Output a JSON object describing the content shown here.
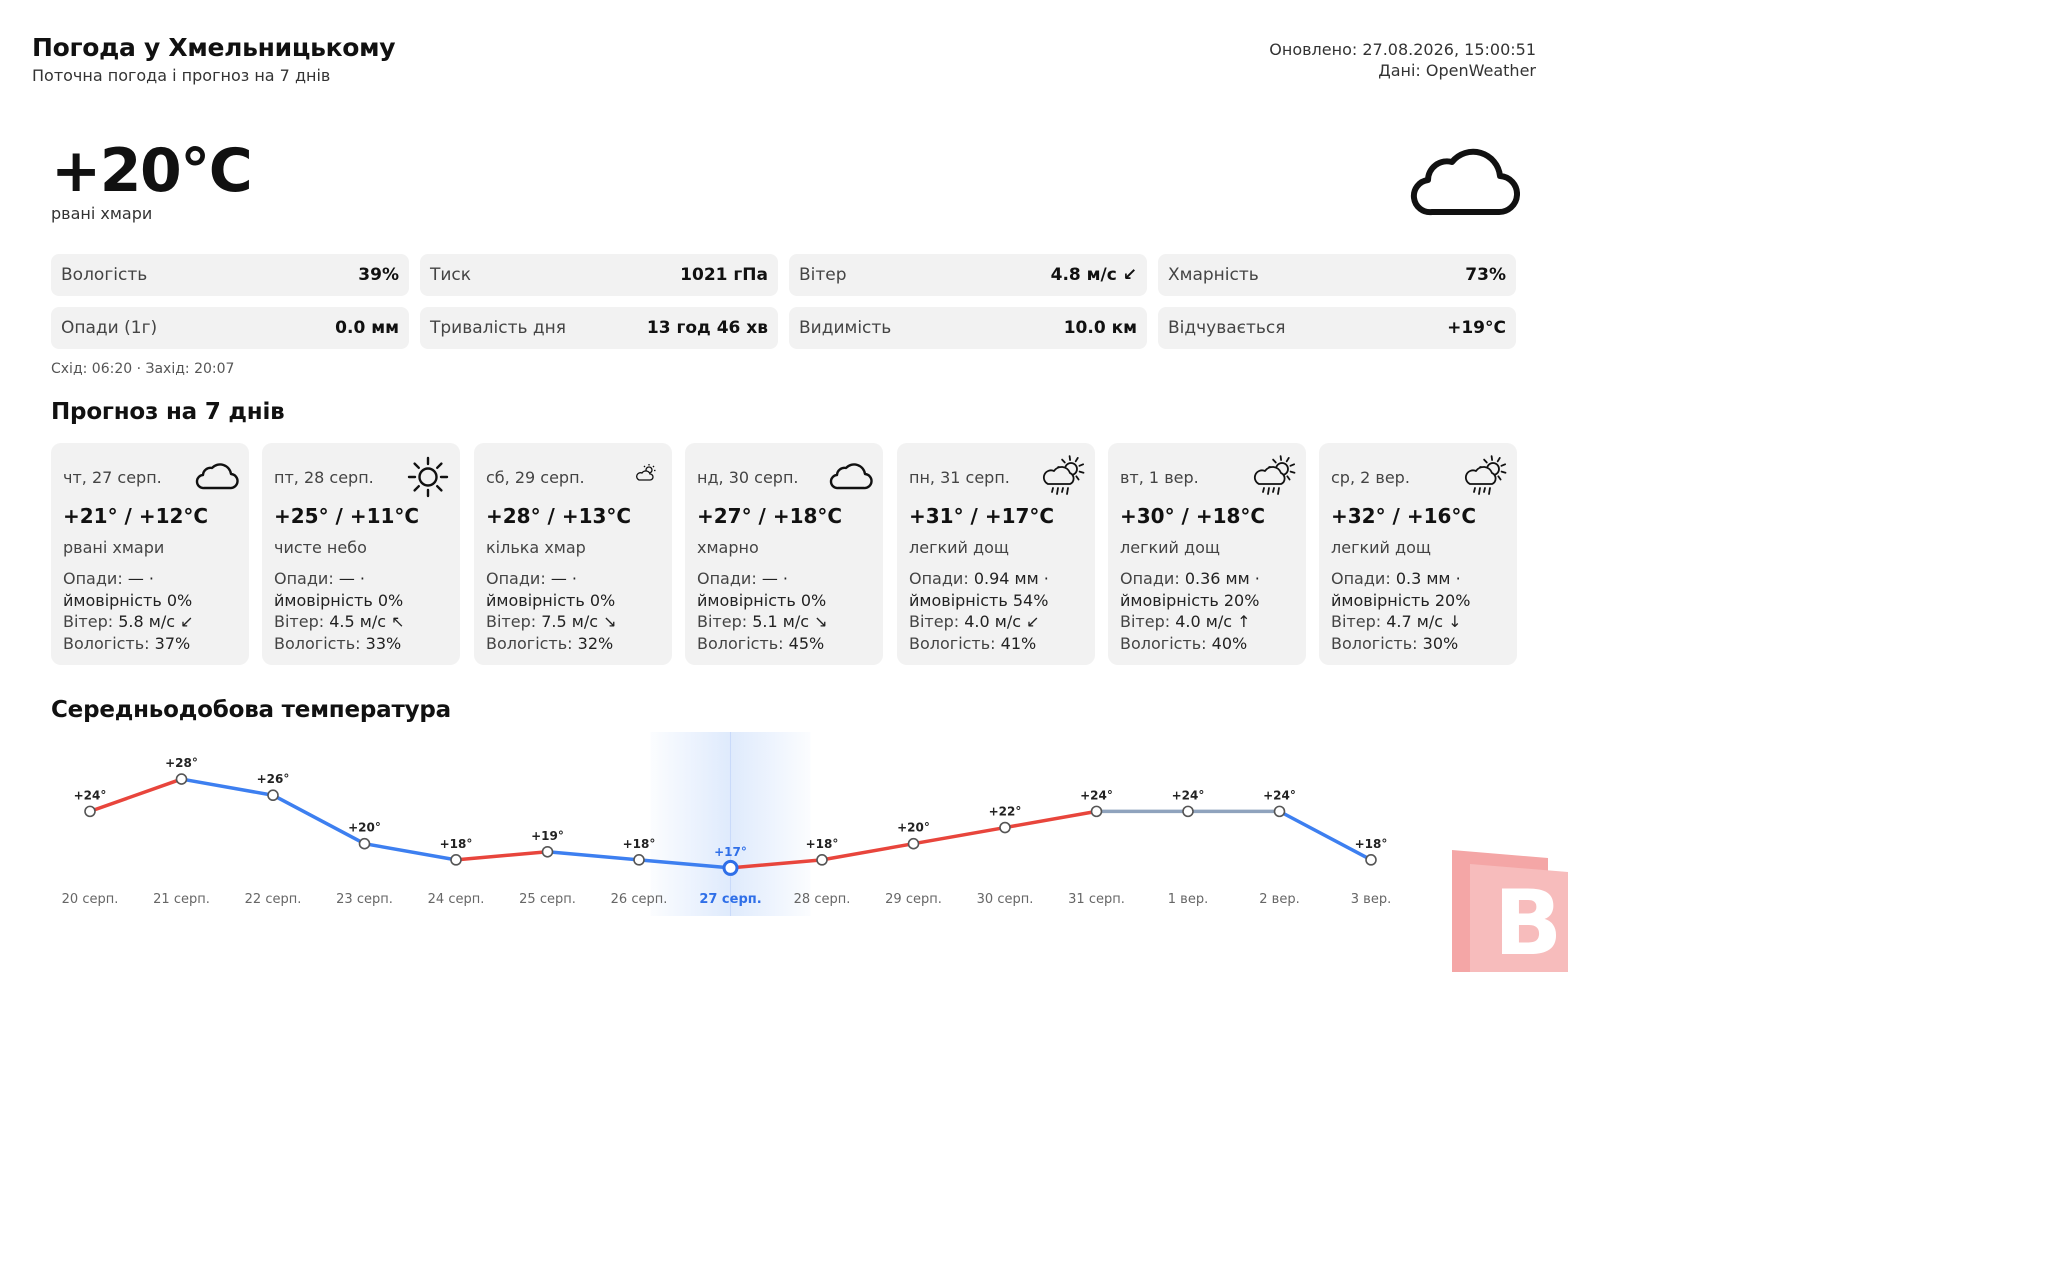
{
  "header": {
    "title": "Погода у Хмельницькому",
    "subtitle": "Поточна погода і прогноз на 7 днів",
    "updated": "Оновлено: 27.08.2026, 15:00:51",
    "source": "Дані: OpenWeather"
  },
  "current": {
    "temp": "+20°C",
    "description": "рвані хмари",
    "icon": "cloud-icon"
  },
  "stats": [
    {
      "label": "Вологість",
      "value": "39%"
    },
    {
      "label": "Тиск",
      "value": "1021 гПа"
    },
    {
      "label": "Вітер",
      "value": "4.8 м/с ↙"
    },
    {
      "label": "Хмарність",
      "value": "73%"
    },
    {
      "label": "Опади (1г)",
      "value": "0.0 мм"
    },
    {
      "label": "Тривалість дня",
      "value": "13 год 46 хв"
    },
    {
      "label": "Видимість",
      "value": "10.0 км"
    },
    {
      "label": "Відчувається",
      "value": "+19°C"
    }
  ],
  "sun": "Схід: 06:20 · Захід: 20:07",
  "forecast": {
    "title": "Прогноз на 7 днів",
    "days": [
      {
        "date": "чт, 27 серп.",
        "icon": "cloud-icon",
        "temp": "+21° / +12°C",
        "desc": "рвані хмари",
        "precip": "—",
        "prob": "0%",
        "wind": "5.8 м/с ↙",
        "humidity": "37%"
      },
      {
        "date": "пт, 28 серп.",
        "icon": "sun-icon",
        "temp": "+25° / +11°C",
        "desc": "чисте небо",
        "precip": "—",
        "prob": "0%",
        "wind": "4.5 м/с ↖",
        "humidity": "33%"
      },
      {
        "date": "сб, 29 серп.",
        "icon": "partly-cloudy-icon",
        "temp": "+28° / +13°C",
        "desc": "кілька хмар",
        "precip": "—",
        "prob": "0%",
        "wind": "7.5 м/с ↘",
        "humidity": "32%"
      },
      {
        "date": "нд, 30 серп.",
        "icon": "cloud-icon",
        "temp": "+27° / +18°C",
        "desc": "хмарно",
        "precip": "—",
        "prob": "0%",
        "wind": "5.1 м/с ↘",
        "humidity": "45%"
      },
      {
        "date": "пн, 31 серп.",
        "icon": "sun-rain-icon",
        "temp": "+31° / +17°C",
        "desc": "легкий дощ",
        "precip": "0.94 мм",
        "prob": "54%",
        "wind": "4.0 м/с ↙",
        "humidity": "41%"
      },
      {
        "date": "вт, 1 вер.",
        "icon": "sun-rain-icon",
        "temp": "+30° / +18°C",
        "desc": "легкий дощ",
        "precip": "0.36 мм",
        "prob": "20%",
        "wind": "4.0 м/с ↑",
        "humidity": "40%"
      },
      {
        "date": "ср, 2 вер.",
        "icon": "sun-rain-icon",
        "temp": "+32° / +16°C",
        "desc": "легкий дощ",
        "precip": "0.3 мм",
        "prob": "20%",
        "wind": "4.7 м/с ↓",
        "humidity": "30%"
      }
    ],
    "labels": {
      "precip": "Опади:",
      "prob": "ймовірність",
      "wind": "Вітер:",
      "humidity": "Вологість:"
    }
  },
  "chart_title": "Середньодобова температура",
  "chart_data": {
    "type": "line",
    "title": "Середньодобова температура",
    "x": [
      "20 серп.",
      "21 серп.",
      "22 серп.",
      "23 серп.",
      "24 серп.",
      "25 серп.",
      "26 серп.",
      "27 серп.",
      "28 серп.",
      "29 серп.",
      "30 серп.",
      "31 серп.",
      "1 вер.",
      "2 вер.",
      "3 вер."
    ],
    "values": [
      24,
      28,
      26,
      20,
      18,
      19,
      18,
      17,
      18,
      20,
      22,
      24,
      24,
      24,
      18
    ],
    "point_labels": [
      "+24°",
      "+28°",
      "+26°",
      "+20°",
      "+18°",
      "+19°",
      "+18°",
      "+17°",
      "+18°",
      "+20°",
      "+22°",
      "+24°",
      "+24°",
      "+24°",
      "+18°"
    ],
    "highlight_index": 7,
    "ylim": [
      16,
      29
    ],
    "grid": false,
    "colors": {
      "rise": "#e8453c",
      "fall": "#3d7ff0",
      "flat": "#8fa3bd",
      "highlight": "#2f6fe8"
    }
  },
  "logo_letter": "B"
}
